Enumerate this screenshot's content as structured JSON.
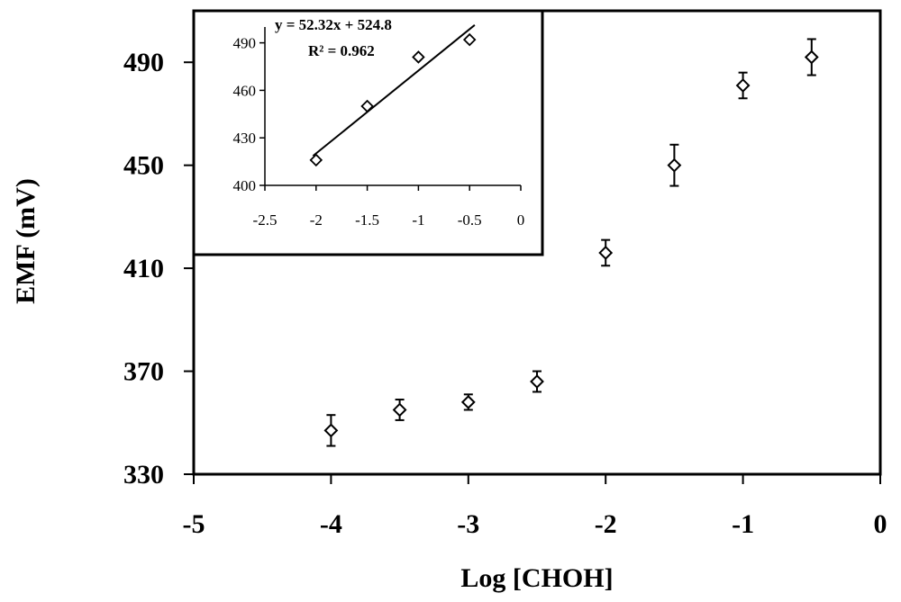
{
  "chart_data": [
    {
      "type": "scatter",
      "title": "",
      "xlabel": "Log [CHOH]",
      "ylabel": "EMF (mV)",
      "xlim": [
        -5,
        0
      ],
      "ylim": [
        330,
        510
      ],
      "x_ticks": [
        "-5",
        "-4",
        "-3",
        "-2",
        "-1",
        "0"
      ],
      "y_ticks": [
        "330",
        "370",
        "410",
        "450",
        "490"
      ],
      "grid": false,
      "marker": "diamond",
      "error_bars": true,
      "series": [
        {
          "x": [
            -4,
            -3.5,
            -3,
            -2.5,
            -2,
            -1.5,
            -1,
            -0.5
          ],
          "y": [
            347,
            355,
            358,
            366,
            416,
            450,
            481,
            492
          ],
          "error": [
            6,
            4,
            3,
            4,
            5,
            8,
            5,
            7
          ]
        }
      ]
    },
    {
      "type": "scatter",
      "title": "",
      "xlabel": "",
      "ylabel": "",
      "xlim": [
        -2.5,
        0
      ],
      "ylim": [
        400,
        500
      ],
      "x_ticks": [
        "-2.5",
        "-2",
        "-1.5",
        "-1",
        "-0.5",
        "0"
      ],
      "y_ticks": [
        "400",
        "430",
        "460",
        "490"
      ],
      "marker": "diamond",
      "series": [
        {
          "x": [
            -2,
            -1.5,
            -1,
            -0.5
          ],
          "y": [
            416,
            450,
            481,
            492
          ]
        }
      ],
      "trendline": {
        "slope": 52.32,
        "intercept": 524.8
      },
      "annotations": [
        "y = 52.32x + 524.8",
        "R² = 0.962"
      ]
    }
  ]
}
